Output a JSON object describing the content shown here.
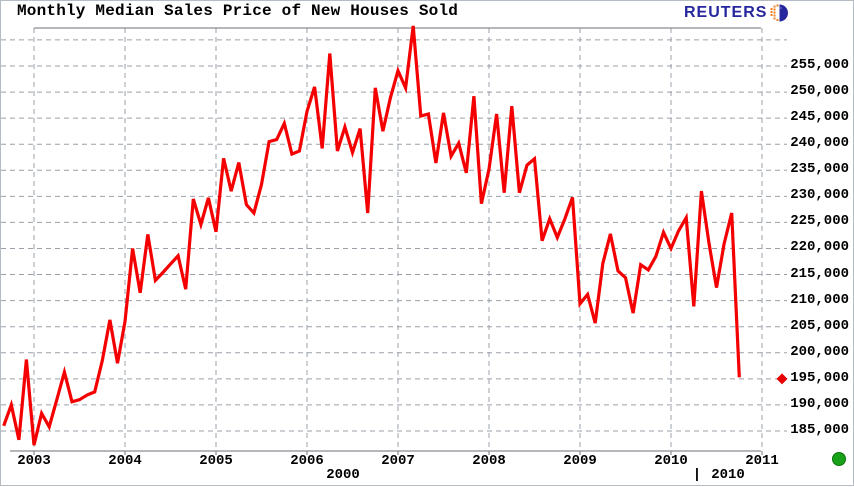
{
  "header": {
    "title": "Monthly Median Sales Price of New Houses Sold",
    "logo_text": "REUTERS",
    "logo_icon": "reuters-dotted-globe-icon"
  },
  "status": {
    "live_dot_color": "#1aa11a"
  },
  "chart_data": {
    "type": "line",
    "title": "Monthly Median Sales Price of New Houses Sold",
    "series_name": "Median sales price of new houses sold (USD)",
    "start_month": "2002-09",
    "end_month": "2010-10",
    "frequency": "monthly",
    "values": [
      186000,
      190000,
      183300,
      198700,
      182300,
      188400,
      185800,
      191000,
      196300,
      190600,
      191000,
      191900,
      192500,
      198500,
      206300,
      198000,
      206000,
      220000,
      211500,
      222700,
      213900,
      215400,
      217000,
      218600,
      212200,
      229500,
      224600,
      229700,
      223200,
      237300,
      231000,
      236500,
      228400,
      226800,
      232300,
      240500,
      240900,
      244000,
      238100,
      238700,
      246300,
      251000,
      239200,
      257400,
      238700,
      243300,
      238400,
      243000,
      226800,
      250800,
      242500,
      248900,
      254100,
      250800,
      262700,
      245400,
      245800,
      236400,
      246000,
      237700,
      240200,
      234500,
      249200,
      228600,
      235200,
      245800,
      230700,
      247300,
      230700,
      236000,
      237200,
      221500,
      225700,
      222100,
      225700,
      229800,
      209400,
      211200,
      205700,
      217100,
      222800,
      215700,
      214400,
      207600,
      216900,
      215900,
      218500,
      223100,
      220000,
      223400,
      225900,
      208900,
      231000,
      221000,
      212500,
      220900,
      226800,
      195300
    ],
    "last_value": 195300,
    "last_value_axis_label": "195,000",
    "y_ticks": [
      255000,
      250000,
      245000,
      240000,
      235000,
      230000,
      225000,
      220000,
      215000,
      210000,
      205000,
      200000,
      195000,
      190000,
      185000
    ],
    "y_tick_labels": [
      "255,000",
      "250,000",
      "245,000",
      "240,000",
      "235,000",
      "230,000",
      "225,000",
      "220,000",
      "215,000",
      "210,000",
      "205,000",
      "200,000",
      "195,000",
      "190,000",
      "185,000"
    ],
    "y_grid_values": [
      260000,
      255000,
      250000,
      245000,
      240000,
      235000,
      230000,
      225000,
      220000,
      215000,
      210000,
      205000,
      200000,
      195000,
      190000,
      185000
    ],
    "x_ticks": [
      2003,
      2004,
      2005,
      2006,
      2007,
      2008,
      2009,
      2010,
      2011
    ],
    "x_tick_labels": [
      "2003",
      "2004",
      "2005",
      "2006",
      "2007",
      "2008",
      "2009",
      "2010",
      "2011"
    ],
    "decade_labels": {
      "left": "2000",
      "divider": "|",
      "right": "2010"
    },
    "ylim": [
      180500,
      263500
    ],
    "grid": true,
    "legend": "none",
    "line_color": "#f40000",
    "marker_color": "#e80000",
    "grid_color": "#9aa0aa",
    "axis_color": "#8a8a92"
  }
}
